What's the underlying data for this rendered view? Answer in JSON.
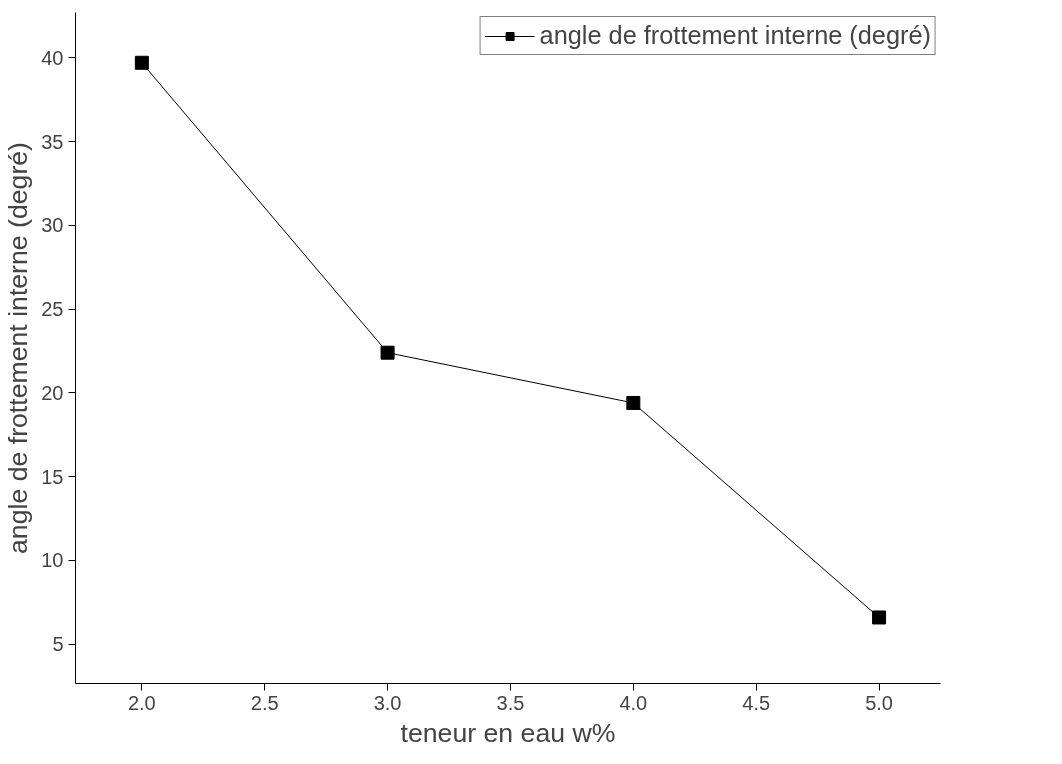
{
  "chart_data": {
    "type": "line",
    "xlabel": "teneur en eau w%",
    "ylabel": "angle de frottement interne (degré)",
    "x": [
      2.0,
      3.0,
      4.0,
      5.0
    ],
    "series": [
      {
        "name": "angle de frottement interne (degré)",
        "color": "#000000",
        "values": [
          39.7,
          22.4,
          19.4,
          6.6
        ]
      }
    ],
    "xlim": [
      1.73,
      5.25
    ],
    "ylim": [
      2.66,
      42.7
    ],
    "xticks": [
      {
        "value": 2,
        "label": "2.0"
      },
      {
        "value": 2.5,
        "label": "2.5"
      },
      {
        "value": 3,
        "label": "3.0"
      },
      {
        "value": 3.5,
        "label": "3.5"
      },
      {
        "value": 4,
        "label": "4.0"
      },
      {
        "value": 4.5,
        "label": "4.5"
      },
      {
        "value": 5,
        "label": "5.0"
      }
    ],
    "yticks": [
      5,
      10,
      15,
      20,
      25,
      30,
      35,
      40
    ],
    "marker": "square",
    "line_style": "solid",
    "grid": false,
    "legend": "top right"
  }
}
